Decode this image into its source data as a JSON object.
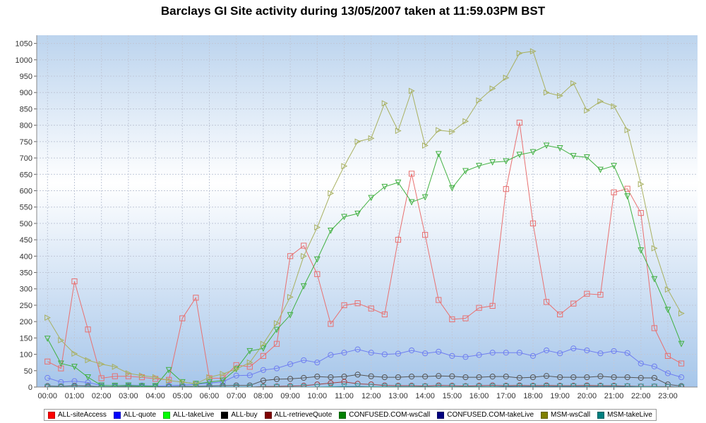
{
  "chart_data": {
    "type": "line",
    "title": "Barclays GI Site activity during 13/05/2007 taken at 11:59.03PM BST",
    "xlabel": "",
    "ylabel": "",
    "ylim": [
      0,
      1075
    ],
    "yticks": [
      0,
      50,
      100,
      150,
      200,
      250,
      300,
      350,
      400,
      450,
      500,
      550,
      600,
      650,
      700,
      750,
      800,
      850,
      900,
      950,
      1000,
      1050
    ],
    "x_tick_labels": [
      "00:00",
      "01:00",
      "02:00",
      "03:00",
      "04:00",
      "05:00",
      "06:00",
      "07:00",
      "08:00",
      "09:00",
      "10:00",
      "11:00",
      "12:00",
      "13:00",
      "14:00",
      "15:00",
      "16:00",
      "17:00",
      "18:00",
      "19:00",
      "20:00",
      "21:00",
      "22:00",
      "23:00"
    ],
    "x_interval_minutes": 30,
    "x_range_hours": [
      -0.4,
      24.1
    ],
    "grid": true,
    "legend_position": "bottom",
    "series": [
      {
        "name": "ALL-siteAccess",
        "color": "#ff0000",
        "line_color": "#e87070",
        "marker": "square",
        "values": [
          78,
          57,
          323,
          176,
          27,
          33,
          33,
          30,
          25,
          22,
          210,
          273,
          27,
          27,
          67,
          62,
          95,
          132,
          400,
          432,
          345,
          193,
          250,
          256,
          240,
          222,
          450,
          652,
          465,
          266,
          207,
          210,
          242,
          248,
          605,
          808,
          500,
          260,
          222,
          255,
          285,
          282,
          595,
          606,
          532,
          180,
          95,
          72
        ]
      },
      {
        "name": "ALL-quote",
        "color": "#0000ff",
        "line_color": "#6f7ff0",
        "marker": "circle",
        "values": [
          28,
          15,
          18,
          14,
          5,
          4,
          6,
          5,
          3,
          4,
          6,
          8,
          12,
          16,
          35,
          36,
          52,
          57,
          70,
          82,
          75,
          98,
          105,
          115,
          105,
          100,
          102,
          112,
          103,
          108,
          95,
          92,
          98,
          105,
          105,
          105,
          95,
          112,
          103,
          118,
          112,
          103,
          110,
          104,
          72,
          63,
          42,
          30
        ]
      },
      {
        "name": "ALL-takeLive",
        "color": "#00ff00",
        "line_color": "#00ff00",
        "marker": "none",
        "values": [
          0,
          0,
          0,
          0,
          0,
          0,
          0,
          0,
          0,
          0,
          0,
          0,
          0,
          0,
          0,
          0,
          0,
          0,
          0,
          0,
          0,
          0,
          0,
          0,
          0,
          0,
          0,
          0,
          0,
          0,
          0,
          0,
          0,
          0,
          0,
          0,
          0,
          0,
          0,
          0,
          0,
          0,
          0,
          0,
          0,
          0,
          0,
          0
        ]
      },
      {
        "name": "ALL-buy",
        "color": "#000000",
        "line_color": "#555555",
        "marker": "circle",
        "values": [
          3,
          2,
          4,
          3,
          1,
          1,
          2,
          1,
          1,
          1,
          2,
          2,
          3,
          4,
          5,
          5,
          20,
          24,
          25,
          28,
          32,
          30,
          32,
          38,
          33,
          30,
          30,
          32,
          32,
          34,
          33,
          30,
          30,
          32,
          32,
          28,
          30,
          34,
          30,
          30,
          30,
          33,
          30,
          30,
          28,
          28,
          8,
          3
        ]
      },
      {
        "name": "ALL-retrieveQuote",
        "color": "#800000",
        "line_color": "#a04040",
        "marker": "circle",
        "values": [
          0,
          0,
          0,
          0,
          0,
          0,
          0,
          0,
          0,
          0,
          0,
          0,
          0,
          0,
          0,
          0,
          2,
          2,
          3,
          4,
          8,
          12,
          16,
          10,
          8,
          5,
          4,
          4,
          3,
          5,
          4,
          3,
          4,
          5,
          4,
          5,
          4,
          5,
          4,
          4,
          5,
          4,
          4,
          3,
          2,
          2,
          1,
          0
        ]
      },
      {
        "name": "CONFUSED.COM-wsCall",
        "color": "#008000",
        "line_color": "#40b040",
        "marker": "triangle-down",
        "values": [
          148,
          72,
          62,
          30,
          5,
          4,
          5,
          3,
          3,
          52,
          15,
          10,
          15,
          20,
          55,
          110,
          118,
          175,
          220,
          308,
          390,
          478,
          520,
          530,
          578,
          612,
          625,
          565,
          580,
          712,
          608,
          660,
          676,
          687,
          690,
          710,
          718,
          738,
          730,
          706,
          702,
          664,
          676,
          583,
          418,
          330,
          236,
          132
        ]
      },
      {
        "name": "CONFUSED.COM-takeLive",
        "color": "#000080",
        "line_color": "#303080",
        "marker": "none",
        "values": [
          0,
          0,
          0,
          0,
          0,
          0,
          0,
          0,
          0,
          0,
          0,
          0,
          0,
          0,
          0,
          0,
          0,
          0,
          0,
          0,
          0,
          0,
          0,
          0,
          0,
          0,
          0,
          0,
          0,
          0,
          0,
          0,
          0,
          0,
          0,
          0,
          0,
          0,
          0,
          0,
          0,
          0,
          0,
          0,
          0,
          0,
          0,
          0
        ]
      },
      {
        "name": "MSM-wsCall",
        "color": "#808000",
        "line_color": "#a8b060",
        "marker": "triangle-right",
        "values": [
          212,
          143,
          102,
          82,
          70,
          62,
          42,
          35,
          30,
          20,
          15,
          10,
          30,
          40,
          55,
          75,
          132,
          195,
          275,
          400,
          488,
          592,
          675,
          750,
          760,
          867,
          783,
          905,
          738,
          785,
          780,
          812,
          876,
          912,
          945,
          1020,
          1026,
          900,
          890,
          928,
          845,
          873,
          858,
          785,
          620,
          424,
          298,
          225
        ]
      },
      {
        "name": "MSM-takeLive",
        "color": "#008080",
        "line_color": "#40a0a0",
        "marker": "triangle-down",
        "values": [
          0,
          0,
          0,
          0,
          0,
          0,
          0,
          0,
          0,
          0,
          0,
          0,
          0,
          0,
          0,
          0,
          0,
          0,
          0,
          0,
          0,
          1,
          2,
          2,
          1,
          1,
          1,
          1,
          1,
          1,
          1,
          1,
          1,
          1,
          2,
          2,
          2,
          2,
          2,
          2,
          2,
          2,
          2,
          2,
          1,
          1,
          0,
          0
        ]
      }
    ]
  }
}
